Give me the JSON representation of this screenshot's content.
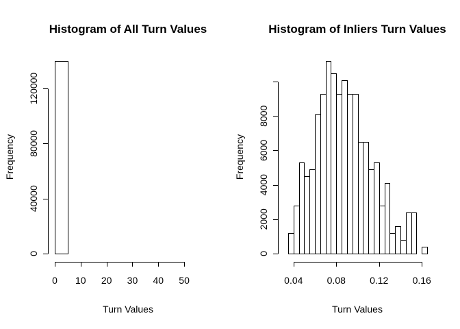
{
  "chart_data": [
    {
      "type": "bar",
      "title": "Histogram of All Turn Values",
      "xlabel": "Turn Values",
      "ylabel": "Frequency",
      "bin_edges": [
        0,
        5,
        10,
        15,
        20,
        25,
        30,
        35,
        40,
        45,
        50,
        55
      ],
      "values": [
        139800,
        0,
        0,
        0,
        0,
        0,
        0,
        0,
        0,
        0,
        0
      ],
      "xlim": [
        0,
        55
      ],
      "ylim": [
        0,
        140000
      ],
      "xticks": [
        0,
        10,
        20,
        30,
        40,
        50
      ],
      "xtick_labels": [
        "0",
        "10",
        "20",
        "30",
        "40",
        "50"
      ],
      "yticks": [
        0,
        40000,
        80000,
        120000
      ],
      "ytick_labels": [
        "0",
        "40000",
        "80000",
        "120000"
      ],
      "grid": false
    },
    {
      "type": "bar",
      "title": "Histogram of Inliers Turn Values",
      "xlabel": "Turn Values",
      "ylabel": "Frequency",
      "bin_edges": [
        0.035,
        0.04,
        0.045,
        0.05,
        0.055,
        0.06,
        0.065,
        0.07,
        0.075,
        0.08,
        0.085,
        0.09,
        0.095,
        0.1,
        0.105,
        0.11,
        0.115,
        0.12,
        0.125,
        0.13,
        0.135,
        0.14,
        0.145,
        0.15,
        0.155,
        0.16,
        0.165
      ],
      "values": [
        1200,
        2800,
        5300,
        4500,
        4900,
        8100,
        9300,
        11200,
        10500,
        9300,
        10100,
        9300,
        9300,
        6500,
        6500,
        4900,
        5300,
        2800,
        4100,
        1200,
        1600,
        800,
        2400,
        2400,
        0,
        400
      ],
      "xlim": [
        0.035,
        0.165
      ],
      "ylim": [
        0,
        11200
      ],
      "xticks": [
        0.04,
        0.08,
        0.12,
        0.16
      ],
      "xtick_labels": [
        "0.04",
        "0.08",
        "0.12",
        "0.16"
      ],
      "yticks": [
        0,
        2000,
        4000,
        6000,
        8000
      ],
      "ytick_labels": [
        "0",
        "2000",
        "4000",
        "6000",
        "8000"
      ],
      "ytick_marks": [
        0,
        2000,
        4000,
        6000,
        8000,
        10000
      ],
      "grid": false
    }
  ]
}
